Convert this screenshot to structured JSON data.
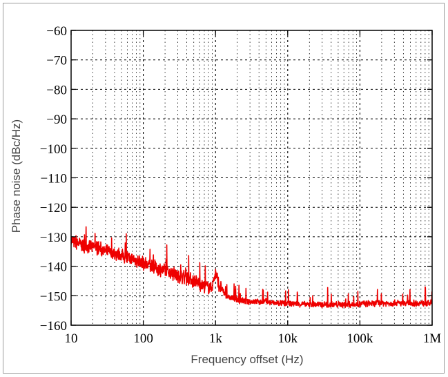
{
  "chart_data": {
    "type": "line",
    "title": "",
    "xlabel": "Frequency  offset (Hz)",
    "ylabel": "Phase noise (dBc/Hz)",
    "x_scale": "log",
    "xlim": [
      10,
      1000000
    ],
    "ylim": [
      -160,
      -60
    ],
    "grid": true,
    "x_tick_values": [
      10,
      100,
      1000,
      10000,
      100000,
      1000000
    ],
    "x_tick_labels": [
      "10",
      "100",
      "1k",
      "10k",
      "100k",
      "1M"
    ],
    "y_tick_values": [
      -60,
      -70,
      -80,
      -90,
      -100,
      -110,
      -120,
      -130,
      -140,
      -150,
      -160
    ],
    "y_tick_labels": [
      "−60",
      "−70",
      "−80",
      "−90",
      "−100",
      "−110",
      "−120",
      "−130",
      "−140",
      "−150",
      "−160"
    ],
    "series": [
      {
        "color": "#ee0000",
        "x": [
          10,
          12,
          15,
          20,
          25,
          30,
          40,
          50,
          60,
          80,
          100,
          150,
          200,
          300,
          400,
          500,
          600,
          700,
          800,
          900,
          1000,
          1100,
          1300,
          1500,
          2000,
          3000,
          5000,
          7000,
          10000,
          20000,
          30000,
          50000,
          70000,
          100000,
          200000,
          500000,
          1000000
        ],
        "y": [
          -131,
          -132,
          -133,
          -133.5,
          -134,
          -135,
          -135.5,
          -136.5,
          -137,
          -138,
          -139,
          -140.5,
          -141.5,
          -143,
          -144,
          -145,
          -146,
          -146.5,
          -147,
          -147,
          -142,
          -146,
          -149,
          -150.5,
          -151.5,
          -152,
          -152,
          -152.5,
          -152.5,
          -153,
          -153,
          -153,
          -153,
          -152.8,
          -152.5,
          -152.5,
          -152.5
        ]
      }
    ]
  }
}
